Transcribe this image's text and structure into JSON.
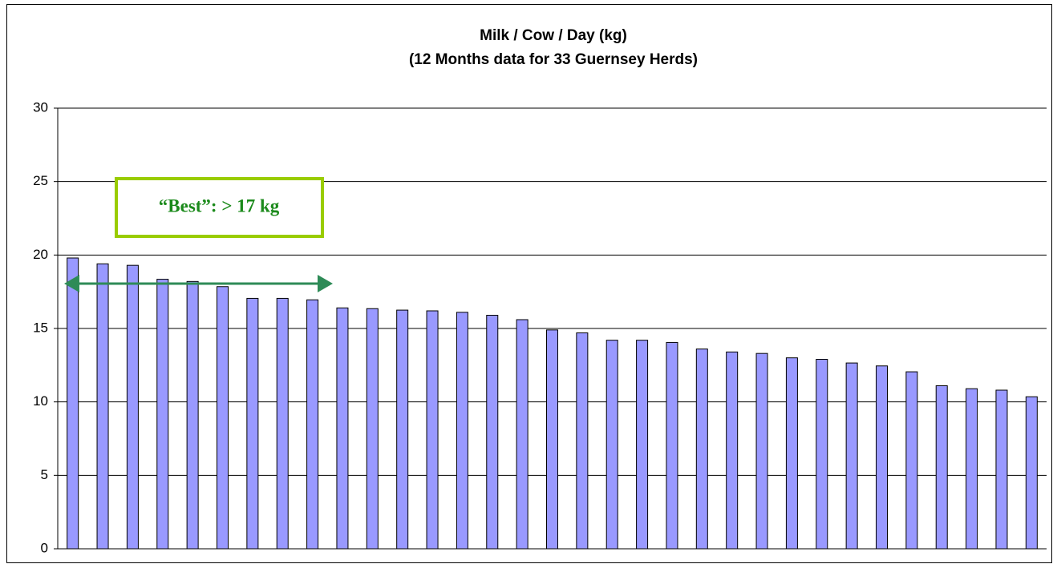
{
  "chart_data": {
    "type": "bar",
    "title": "Milk / Cow / Day (kg)",
    "subtitle": "(12 Months data for 33 Guernsey Herds)",
    "annotation": "“Best”: > 17 kg",
    "categories": [
      null,
      null,
      null,
      null,
      null,
      null,
      null,
      null,
      null,
      null,
      null,
      null,
      null,
      null,
      null,
      null,
      null,
      null,
      null,
      null,
      null,
      null,
      null,
      null,
      null,
      null,
      null,
      null,
      null,
      null,
      null,
      null,
      null
    ],
    "values": [
      19.8,
      19.4,
      19.3,
      18.35,
      18.2,
      17.85,
      17.05,
      17.05,
      16.95,
      16.4,
      16.35,
      16.25,
      16.2,
      16.1,
      15.9,
      15.6,
      14.9,
      14.7,
      14.2,
      14.2,
      14.05,
      13.6,
      13.4,
      13.3,
      13.0,
      12.9,
      12.65,
      12.45,
      12.05,
      11.1,
      10.9,
      10.8,
      10.35
    ],
    "color": "#9999ff",
    "ylim": [
      0,
      30
    ],
    "yticks": [
      0,
      5,
      10,
      15,
      20,
      25,
      30
    ],
    "grid": true
  }
}
